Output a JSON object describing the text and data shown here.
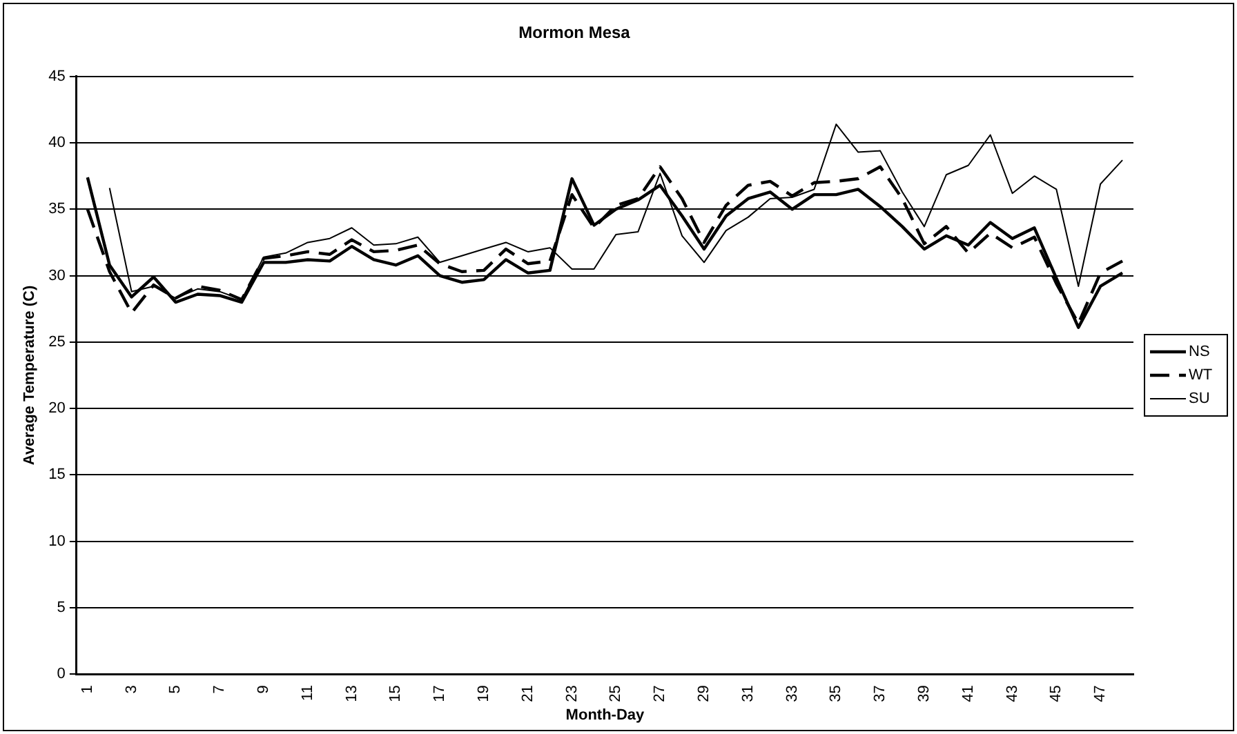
{
  "chart_data": {
    "type": "line",
    "title": "Mormon Mesa",
    "xlabel": "Month-Day",
    "ylabel": "Average Temperature (C)",
    "categories": [
      "1",
      null,
      "3",
      null,
      "5",
      null,
      "7",
      null,
      "9",
      null,
      "11",
      null,
      "13",
      null,
      "15",
      null,
      "17",
      null,
      "19",
      null,
      "21",
      null,
      "23",
      null,
      "25",
      null,
      "27",
      null,
      "29",
      null,
      "31",
      null,
      "33",
      null,
      "35",
      null,
      "37",
      null,
      "39",
      null,
      "41",
      null,
      "43",
      null,
      "45",
      null,
      "47",
      null
    ],
    "series": [
      {
        "name": "NS",
        "color": "#000000",
        "line_style": "solid",
        "values": [
          37.4,
          30.8,
          28.4,
          29.9,
          28.0,
          28.6,
          28.5,
          28.0,
          31.0,
          31.0,
          31.2,
          31.1,
          32.2,
          31.2,
          30.8,
          31.5,
          30.0,
          29.5,
          29.7,
          31.2,
          30.2,
          30.4,
          37.3,
          33.8,
          35.0,
          35.7,
          36.8,
          34.5,
          32.0,
          34.5,
          35.8,
          36.3,
          35.0,
          36.1,
          36.1,
          36.5,
          35.2,
          33.7,
          32.0,
          33.0,
          32.3,
          34.0,
          32.8,
          33.6,
          29.8,
          26.1,
          29.2,
          30.2
        ]
      },
      {
        "name": "WT",
        "color": "#000000",
        "line_style": "dashed",
        "values": [
          35.0,
          30.3,
          27.2,
          29.3,
          28.3,
          29.2,
          28.9,
          28.2,
          31.3,
          31.5,
          31.8,
          31.6,
          32.7,
          31.8,
          31.9,
          32.3,
          30.9,
          30.3,
          30.4,
          32.0,
          30.9,
          31.1,
          36.1,
          33.6,
          35.3,
          35.8,
          38.2,
          35.8,
          32.5,
          35.3,
          36.8,
          37.1,
          36.0,
          37.0,
          37.1,
          37.3,
          38.2,
          35.8,
          32.4,
          33.7,
          31.7,
          33.2,
          32.1,
          32.9,
          29.4,
          26.4,
          30.2,
          31.1
        ]
      },
      {
        "name": "SU",
        "color": "#000000",
        "line_style": "solid",
        "values": [
          null,
          36.6,
          28.8,
          29.2,
          28.3,
          29.0,
          28.8,
          28.2,
          31.4,
          31.7,
          32.5,
          32.8,
          33.6,
          32.3,
          32.4,
          32.9,
          31.0,
          31.5,
          32.0,
          32.5,
          31.8,
          32.1,
          30.5,
          30.5,
          33.1,
          33.3,
          37.7,
          33.0,
          31.0,
          33.4,
          34.4,
          35.8,
          35.9,
          36.5,
          41.4,
          39.3,
          39.4,
          36.3,
          33.7,
          37.6,
          38.3,
          40.6,
          36.2,
          37.5,
          36.5,
          29.2,
          36.9,
          38.7
        ]
      }
    ],
    "ylim": [
      0,
      45
    ],
    "yticks": [
      0,
      5,
      10,
      15,
      20,
      25,
      30,
      35,
      40,
      45
    ],
    "grid": "y",
    "legend": "right",
    "marker": "none"
  }
}
